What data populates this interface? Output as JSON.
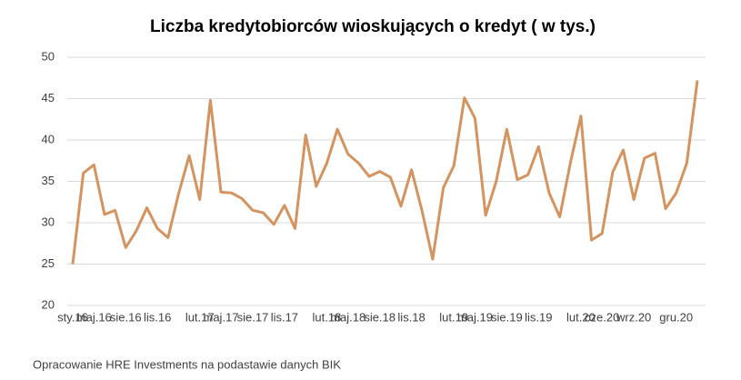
{
  "chart_data": {
    "type": "line",
    "title": "Liczba kredytobiorców wioskujących o kredyt ( w tys.)",
    "source": "Opracowanie HRE Investments na podastawie danych BIK",
    "categories": [
      "sty.16",
      null,
      "maj.16",
      null,
      null,
      "sie.16",
      null,
      null,
      "lis.16",
      null,
      null,
      null,
      "lut.17",
      null,
      "maj.17",
      null,
      null,
      "sie.17",
      null,
      null,
      "lis.17",
      null,
      null,
      null,
      "lut.18",
      null,
      "maj.18",
      null,
      null,
      "sie.18",
      null,
      null,
      "lis.18",
      null,
      null,
      null,
      "lut.19",
      null,
      "maj.19",
      null,
      null,
      "sie.19",
      null,
      null,
      "lis.19",
      null,
      null,
      null,
      "lut.20",
      null,
      "cze.20",
      null,
      null,
      "wrz.20",
      null,
      null,
      null,
      "gru.20",
      null,
      null
    ],
    "series": [
      {
        "name": "Liczba kredytobiorców",
        "color": "#d4935f",
        "values": [
          25,
          36,
          37,
          31,
          31.5,
          27,
          29,
          31.8,
          29.3,
          28.2,
          33.5,
          38.1,
          32.8,
          44.8,
          33.7,
          33.6,
          32.9,
          31.5,
          31.2,
          29.8,
          32.1,
          29.3,
          40.6,
          34.4,
          37.2,
          41.3,
          38.3,
          37.2,
          35.6,
          36.2,
          35.5,
          32,
          36.4,
          31.4,
          25.6,
          34.2,
          36.9,
          45.1,
          42.6,
          30.9,
          35,
          41.3,
          35.2,
          35.8,
          39.2,
          33.6,
          30.7,
          37.2,
          42.9,
          27.9,
          28.7,
          36.1,
          38.8,
          32.8,
          37.8,
          38.4,
          31.7,
          33.6,
          37.2,
          47.2
        ]
      }
    ],
    "ylim": [
      20,
      50
    ],
    "yticks": [
      20,
      25,
      30,
      35,
      40,
      45,
      50
    ],
    "grid": true
  }
}
